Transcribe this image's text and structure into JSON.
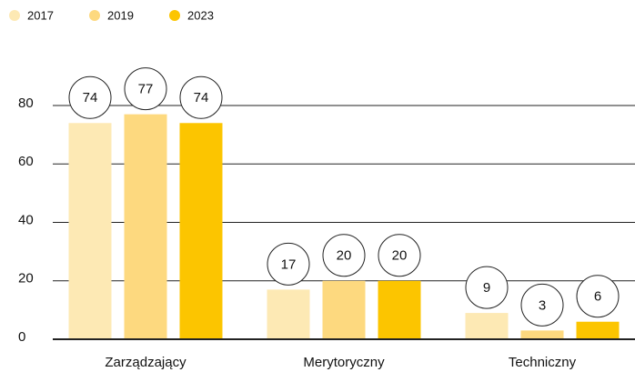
{
  "chart_data": {
    "type": "bar",
    "categories": [
      "Zarządzający",
      "Merytoryczny",
      "Techniczny"
    ],
    "series": [
      {
        "name": "2017",
        "color": "#fde9b4",
        "values": [
          74,
          17,
          9
        ]
      },
      {
        "name": "2019",
        "color": "#fdd97f",
        "values": [
          77,
          20,
          3
        ]
      },
      {
        "name": "2023",
        "color": "#fcc500",
        "values": [
          74,
          20,
          6
        ]
      }
    ],
    "ylim": [
      0,
      80
    ],
    "yticks": [
      0,
      20,
      40,
      60,
      80
    ],
    "grid": true,
    "legend": "top-left"
  }
}
